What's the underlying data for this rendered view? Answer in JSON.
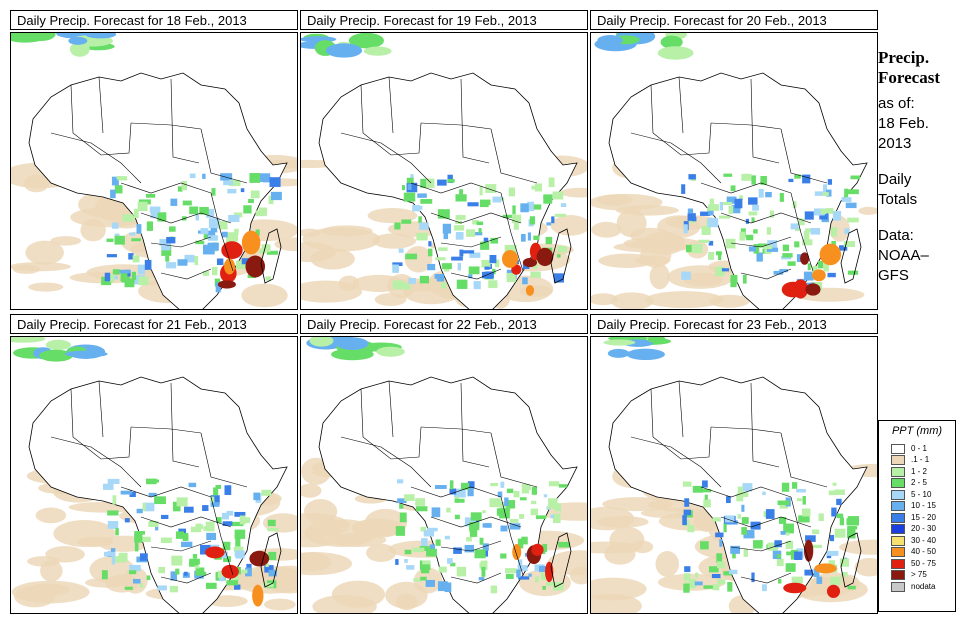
{
  "panels": [
    {
      "title": "Daily Precip. Forecast for  18 Feb., 2013"
    },
    {
      "title": "Daily Precip. Forecast for  19 Feb., 2013"
    },
    {
      "title": "Daily Precip. Forecast for  20 Feb., 2013"
    },
    {
      "title": "Daily Precip. Forecast for  21 Feb., 2013"
    },
    {
      "title": "Daily Precip. Forecast for  22 Feb., 2013"
    },
    {
      "title": "Daily Precip. Forecast for  23 Feb., 2013"
    }
  ],
  "side": {
    "heading1": "Precip.",
    "heading2": "Forecast",
    "asof1": "as of:",
    "asof2": "18 Feb.",
    "asof3": "2013",
    "daily1": "Daily",
    "daily2": "Totals",
    "data1": "Data:",
    "data2": "NOAA–",
    "data3": "GFS"
  },
  "legend": {
    "title": "PPT (mm)",
    "items": [
      {
        "label": "0 - 1",
        "color": "#ffffff"
      },
      {
        "label": ".1 - 1",
        "color": "#ecd8b8"
      },
      {
        "label": "1 - 2",
        "color": "#b8f0a8"
      },
      {
        "label": "2 - 5",
        "color": "#66dd66"
      },
      {
        "label": "5 - 10",
        "color": "#a8d8f8"
      },
      {
        "label": "10 - 15",
        "color": "#66b0f0"
      },
      {
        "label": "15 - 20",
        "color": "#3a7ee8"
      },
      {
        "label": "20 - 30",
        "color": "#1a3ee0"
      },
      {
        "label": "30 - 40",
        "color": "#f8e070"
      },
      {
        "label": "40 - 50",
        "color": "#f89020"
      },
      {
        "label": "50 - 75",
        "color": "#e02010"
      },
      {
        "label": "> 75",
        "color": "#8a1a10"
      },
      {
        "label": "nodata",
        "color": "#c8c8c8"
      }
    ]
  }
}
